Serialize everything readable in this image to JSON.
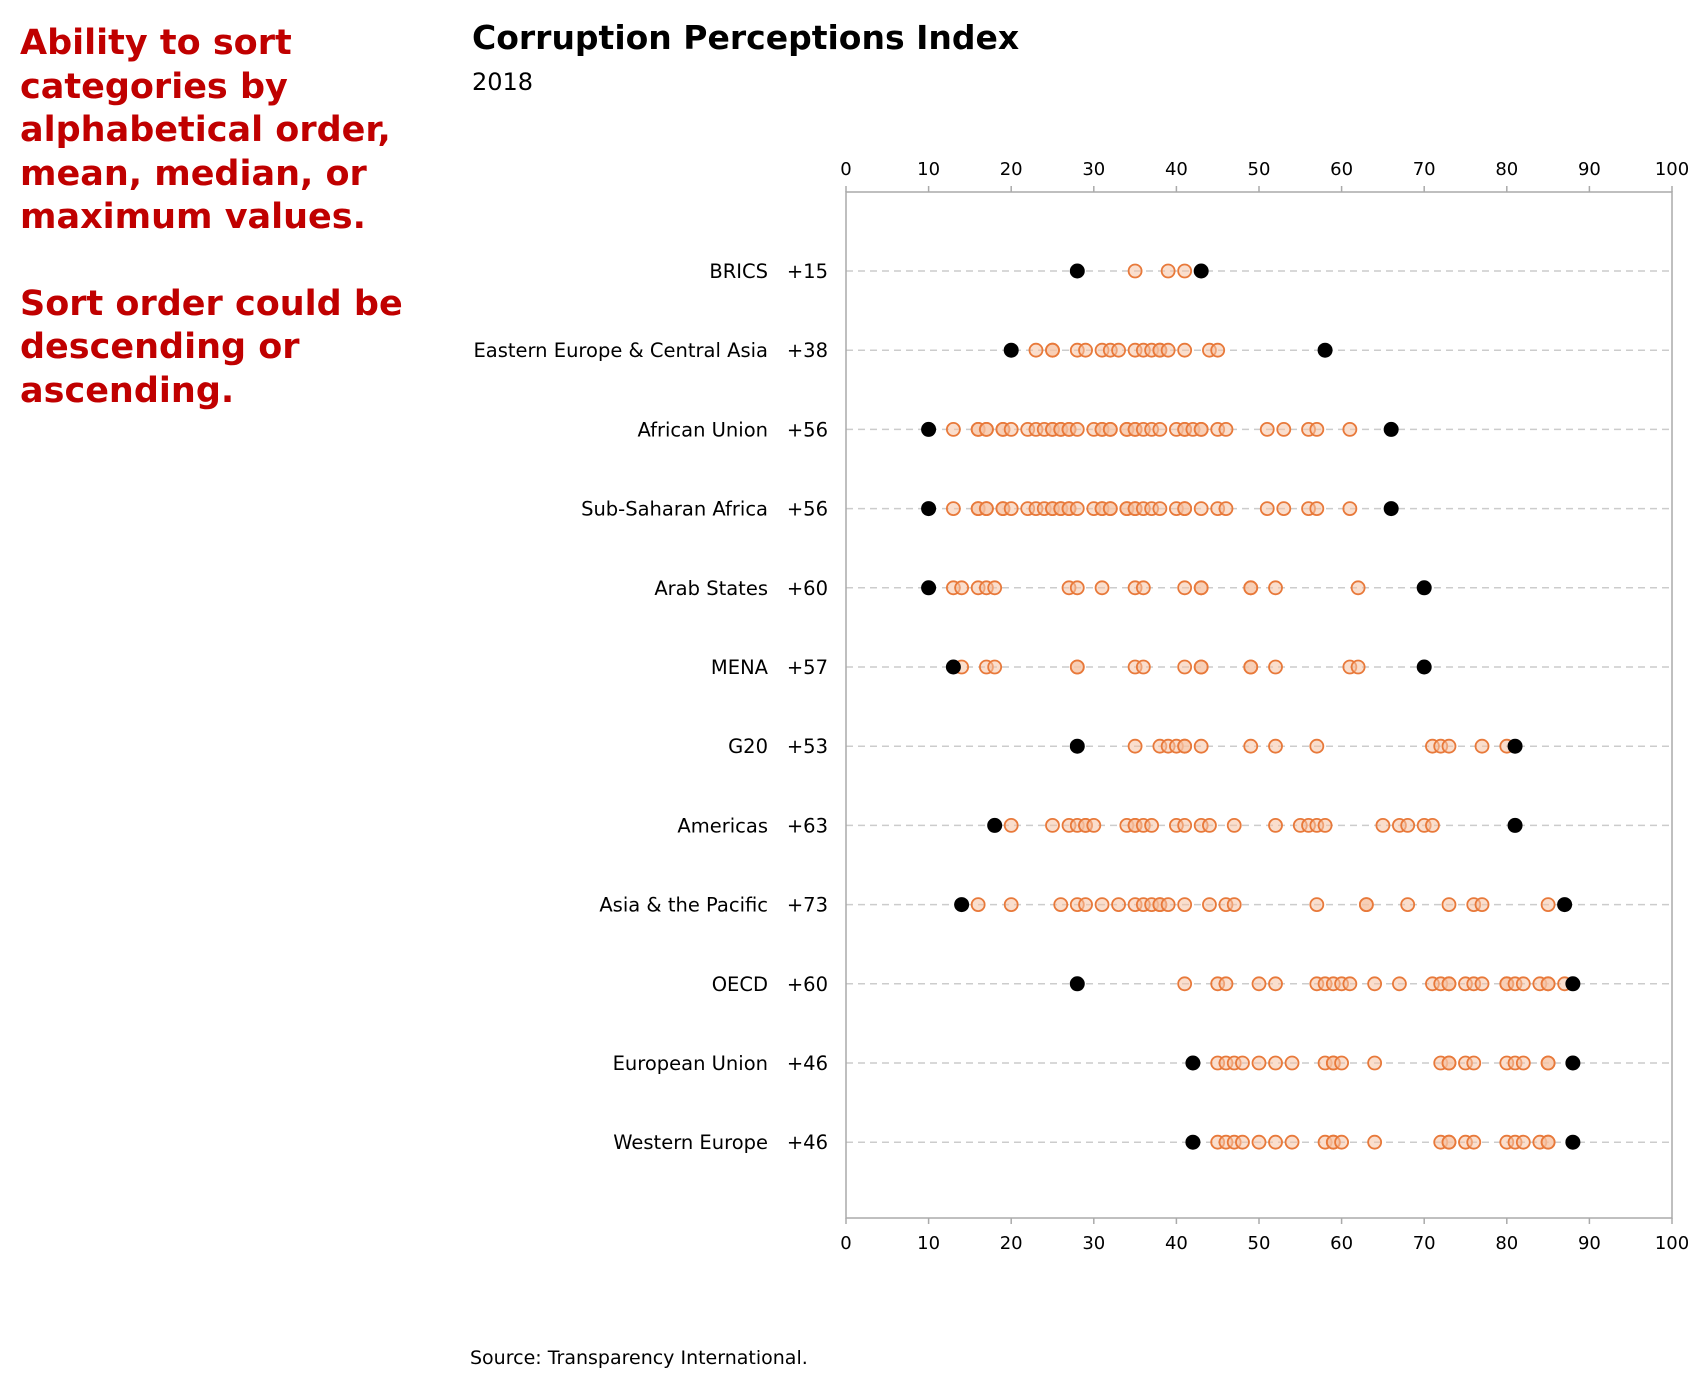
{
  "annotation": {
    "line1": "Ability to sort categories by alphabetical order, mean, median, or maximum values.",
    "line2": "Sort order could be descending or ascending."
  },
  "colors": {
    "point": "#e8793a",
    "point_fill": "#f6c3a4",
    "extreme": "#000000",
    "annotation": "#c00000",
    "grid": "#cccccc",
    "axis": "#aaaaaa"
  },
  "source": "Source: Transparency International.",
  "chart_data": {
    "type": "scatter",
    "title": "Corruption Perceptions Index",
    "subtitle": "2018",
    "xlim": [
      0,
      100
    ],
    "xticks": [
      0,
      10,
      20,
      30,
      40,
      50,
      60,
      70,
      80,
      90,
      100
    ],
    "axis_position": "top-and-bottom",
    "grid": "dashed horizontal per category",
    "categories": [
      {
        "name": "BRICS",
        "range_label": "+15",
        "min": 28,
        "max": 43,
        "values": [
          35,
          39,
          41
        ]
      },
      {
        "name": "Eastern Europe & Central Asia",
        "range_label": "+38",
        "min": 20,
        "max": 58,
        "values": [
          23,
          25,
          25,
          28,
          29,
          31,
          32,
          33,
          35,
          36,
          37,
          38,
          38,
          39,
          41,
          44,
          45
        ]
      },
      {
        "name": "African Union",
        "range_label": "+56",
        "min": 10,
        "max": 66,
        "values": [
          13,
          16,
          16,
          17,
          17,
          19,
          19,
          20,
          22,
          23,
          24,
          25,
          25,
          26,
          26,
          27,
          27,
          28,
          30,
          31,
          31,
          32,
          32,
          34,
          34,
          35,
          35,
          36,
          37,
          38,
          40,
          41,
          41,
          42,
          43,
          43,
          45,
          46,
          51,
          53,
          56,
          57,
          61
        ]
      },
      {
        "name": "Sub-Saharan Africa",
        "range_label": "+56",
        "min": 10,
        "max": 66,
        "values": [
          13,
          16,
          16,
          17,
          17,
          19,
          19,
          20,
          22,
          23,
          24,
          25,
          25,
          26,
          26,
          27,
          27,
          28,
          30,
          31,
          31,
          32,
          32,
          34,
          34,
          35,
          35,
          36,
          37,
          38,
          40,
          41,
          41,
          43,
          45,
          46,
          51,
          53,
          56,
          57,
          61
        ]
      },
      {
        "name": "Arab States",
        "range_label": "+60",
        "min": 10,
        "max": 70,
        "values": [
          13,
          14,
          16,
          17,
          18,
          27,
          28,
          31,
          35,
          36,
          41,
          43,
          43,
          49,
          49,
          52,
          62
        ]
      },
      {
        "name": "MENA",
        "range_label": "+57",
        "min": 13,
        "max": 70,
        "values": [
          14,
          17,
          18,
          28,
          28,
          35,
          36,
          41,
          43,
          43,
          49,
          49,
          52,
          61,
          62
        ]
      },
      {
        "name": "G20",
        "range_label": "+53",
        "min": 28,
        "max": 81,
        "values": [
          35,
          38,
          39,
          40,
          41,
          41,
          43,
          49,
          52,
          57,
          71,
          72,
          73,
          77,
          80
        ]
      },
      {
        "name": "Americas",
        "range_label": "+63",
        "min": 18,
        "max": 81,
        "values": [
          20,
          25,
          27,
          28,
          29,
          29,
          30,
          34,
          35,
          35,
          36,
          37,
          40,
          41,
          43,
          44,
          47,
          52,
          55,
          56,
          57,
          58,
          65,
          67,
          68,
          70,
          71
        ]
      },
      {
        "name": "Asia & the Pacific",
        "range_label": "+73",
        "min": 14,
        "max": 87,
        "values": [
          16,
          20,
          26,
          28,
          29,
          31,
          33,
          35,
          36,
          37,
          38,
          38,
          39,
          41,
          44,
          46,
          47,
          57,
          63,
          63,
          68,
          73,
          76,
          77,
          85
        ]
      },
      {
        "name": "OECD",
        "range_label": "+60",
        "min": 28,
        "max": 88,
        "values": [
          41,
          45,
          46,
          50,
          52,
          57,
          58,
          59,
          60,
          61,
          64,
          67,
          71,
          72,
          73,
          73,
          75,
          76,
          77,
          80,
          80,
          81,
          82,
          84,
          85,
          85,
          87
        ]
      },
      {
        "name": "European Union",
        "range_label": "+46",
        "min": 42,
        "max": 88,
        "values": [
          45,
          46,
          47,
          48,
          50,
          52,
          54,
          58,
          59,
          59,
          60,
          64,
          72,
          73,
          73,
          75,
          76,
          80,
          81,
          82,
          85,
          85
        ]
      },
      {
        "name": "Western Europe",
        "range_label": "+46",
        "min": 42,
        "max": 88,
        "values": [
          45,
          46,
          47,
          48,
          50,
          52,
          54,
          58,
          59,
          59,
          60,
          64,
          72,
          73,
          73,
          75,
          76,
          80,
          81,
          82,
          84,
          85,
          85
        ]
      }
    ]
  }
}
